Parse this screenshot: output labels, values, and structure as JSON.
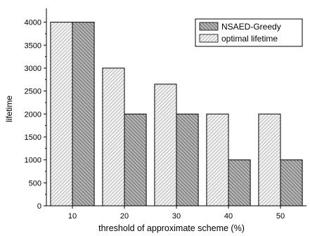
{
  "chart_data": {
    "type": "bar",
    "categories": [
      "10",
      "20",
      "30",
      "40",
      "50"
    ],
    "series": [
      {
        "name": "NSAED-Greedy",
        "values": [
          4000,
          2000,
          2000,
          1000,
          1000
        ],
        "fill": "#a9a9a9",
        "hatch": "dense-backslash"
      },
      {
        "name": "optimal lifetime",
        "values": [
          4000,
          3000,
          2650,
          2000,
          2000
        ],
        "fill": "#f0f0f0",
        "hatch": "light-slash"
      }
    ],
    "bar_order": [
      "optimal lifetime",
      "NSAED-Greedy"
    ],
    "xlabel": "threshold of approximate scheme (%)",
    "ylabel": "lifetime",
    "ylim": [
      0,
      4300
    ],
    "yticks": [
      0,
      500,
      1000,
      1500,
      2000,
      2500,
      3000,
      3500,
      4000
    ],
    "legend_position": "top-right",
    "grid": false
  }
}
